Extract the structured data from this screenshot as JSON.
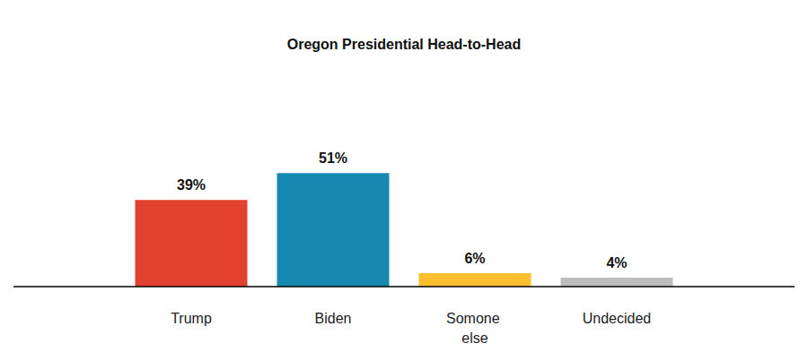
{
  "chart_data": {
    "type": "bar",
    "title": "Oregon Presidential Head-to-Head",
    "categories": [
      "Trump",
      "Biden",
      "Somone else",
      "Undecided"
    ],
    "values": [
      39,
      51,
      6,
      4
    ],
    "value_labels": [
      "39%",
      "51%",
      "6%",
      "4%"
    ],
    "colors": [
      "#e34130",
      "#1589b0",
      "#fbbf2f",
      "#bdbdbd"
    ],
    "ylim": [
      0,
      60
    ],
    "grid": false,
    "data_labels": true,
    "tick_labels": "x"
  }
}
